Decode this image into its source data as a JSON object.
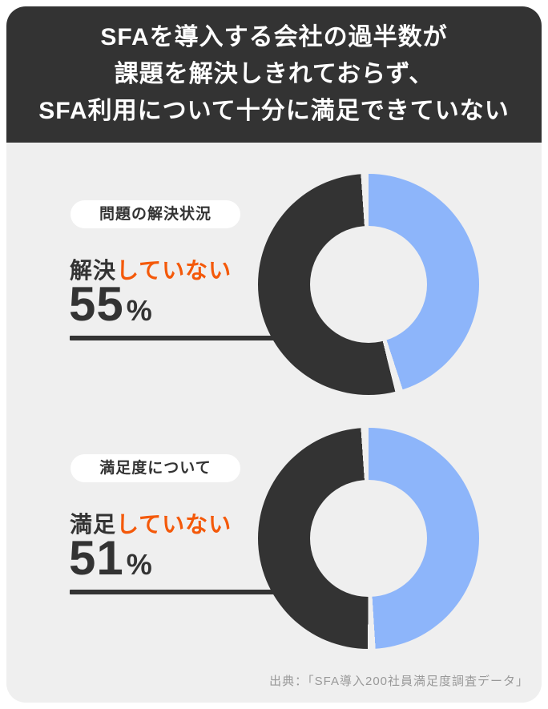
{
  "header": {
    "lines": [
      "SFAを導入する会社の過半数が",
      "課題を解決しきれておらず、",
      "SFA利用について十分に満足できていない"
    ]
  },
  "sections": [
    {
      "badge": "問題の解決状況",
      "label_prefix": "解決",
      "label_highlight": "していない",
      "value": "55",
      "unit": "%"
    },
    {
      "badge": "満足度について",
      "label_prefix": "満足",
      "label_highlight": "していない",
      "value": "51",
      "unit": "%"
    }
  ],
  "footer": {
    "source": "出典：「SFA導入200社員満足度調査データ」"
  },
  "colors": {
    "dark": "#333333",
    "blue": "#8db5fa",
    "orange": "#f4590a",
    "background": "#efefef",
    "header_text": "#ffffff"
  },
  "chart_data": [
    {
      "type": "pie",
      "donut": true,
      "title": "問題の解決状況",
      "start_angle_deg": 0,
      "direction": "clockwise",
      "slices": [
        {
          "label": "解決していない",
          "value": 55,
          "color": "#333333"
        },
        {
          "label": "",
          "value": 45,
          "color": "#8db5fa"
        }
      ]
    },
    {
      "type": "pie",
      "donut": true,
      "title": "満足度について",
      "start_angle_deg": 0,
      "direction": "clockwise",
      "slices": [
        {
          "label": "満足していない",
          "value": 51,
          "color": "#333333"
        },
        {
          "label": "",
          "value": 49,
          "color": "#8db5fa"
        }
      ]
    }
  ]
}
